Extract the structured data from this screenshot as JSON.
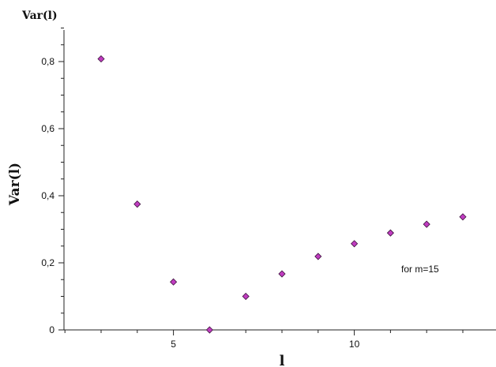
{
  "chart_data": {
    "type": "scatter",
    "title": "Var(l)",
    "xlabel": "l",
    "ylabel": "Var(l)",
    "annotation": "for m=15",
    "xlim": [
      1.8,
      15
    ],
    "ylim": [
      0,
      0.9
    ],
    "x_ticks": [
      5,
      10
    ],
    "x_tick_labels": [
      "5",
      "10"
    ],
    "y_ticks": [
      0,
      0.2,
      0.4,
      0.6,
      0.8
    ],
    "y_tick_labels": [
      "0",
      "0,2",
      "0,4",
      "0,6",
      "0,8"
    ],
    "marker_color": "#c03cc0",
    "grid": false,
    "legend": "none",
    "points": [
      {
        "x": 3,
        "y": 0.808
      },
      {
        "x": 4,
        "y": 0.375
      },
      {
        "x": 5,
        "y": 0.143
      },
      {
        "x": 6,
        "y": 0.0
      },
      {
        "x": 7,
        "y": 0.1
      },
      {
        "x": 8,
        "y": 0.167
      },
      {
        "x": 9,
        "y": 0.219
      },
      {
        "x": 10,
        "y": 0.257
      },
      {
        "x": 11,
        "y": 0.289
      },
      {
        "x": 12,
        "y": 0.315
      },
      {
        "x": 13,
        "y": 0.337
      }
    ]
  }
}
